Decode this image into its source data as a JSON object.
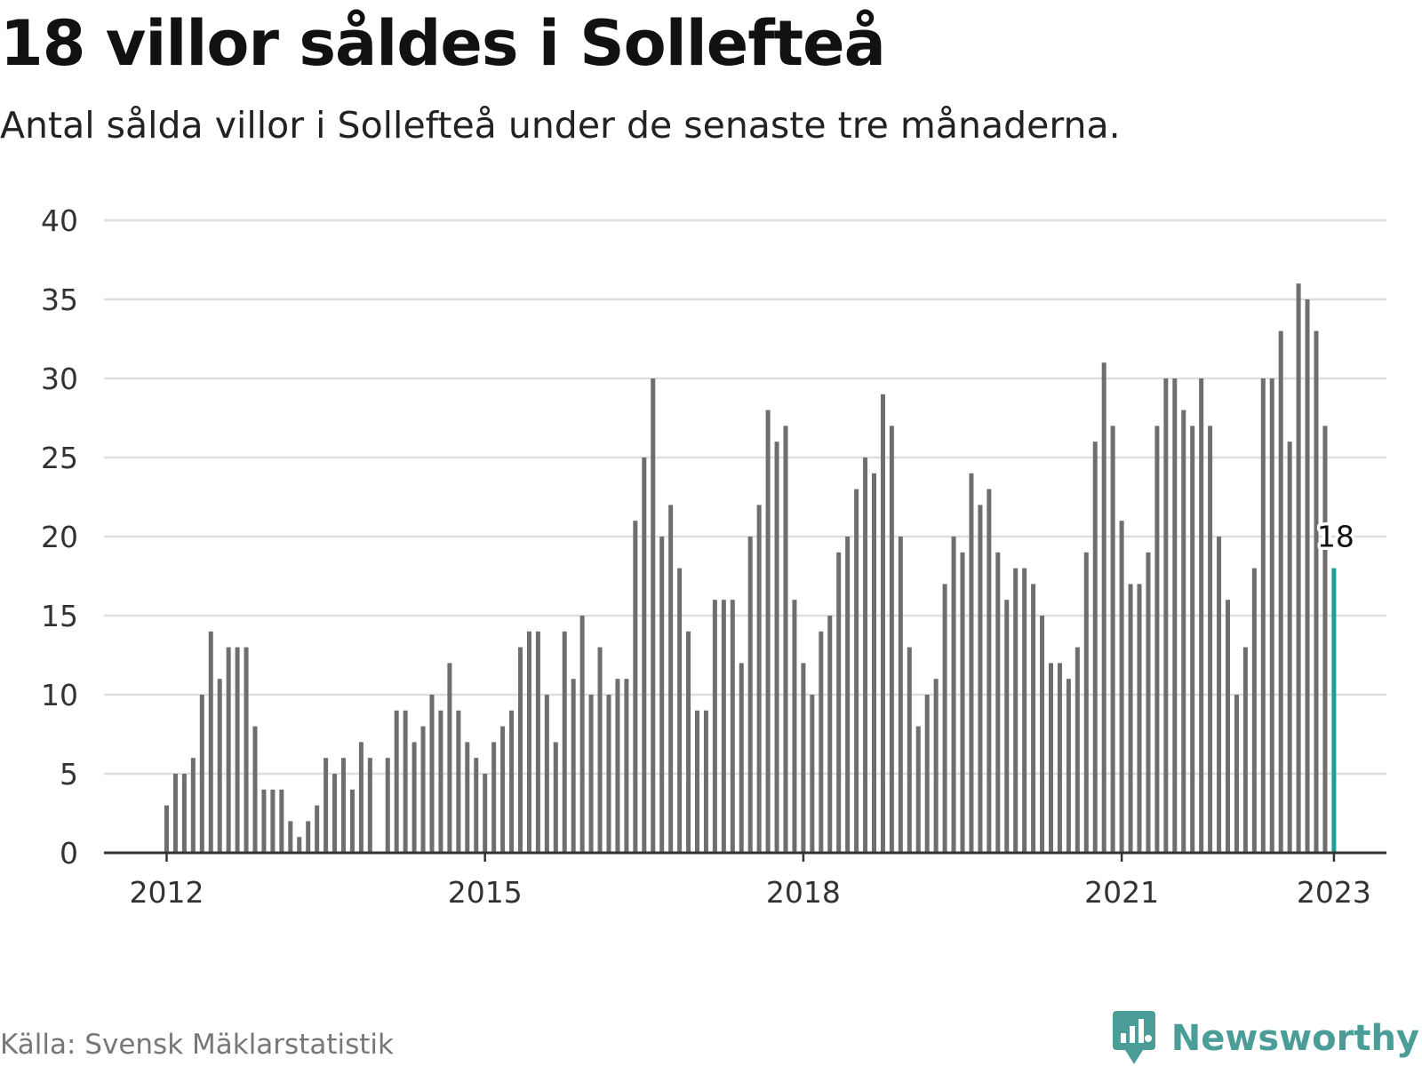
{
  "title": "18 villor såldes i Sollefteå",
  "subtitle": "Antal sålda villor i Sollefteå under de senaste tre månaderna.",
  "source": "Källa: Svensk Mäklarstatistik",
  "brand": {
    "name": "Newsworthy",
    "icon": "newsworthy-logo-icon",
    "color": "#4b9e98"
  },
  "colors": {
    "bar": "#6e6e6e",
    "highlight": "#1e9e97",
    "grid": "#dedede",
    "axis": "#333333"
  },
  "chart_data": {
    "type": "bar",
    "x_start": "2012-01",
    "x_step": "month",
    "values": [
      3,
      5,
      5,
      6,
      10,
      14,
      11,
      13,
      13,
      13,
      8,
      4,
      4,
      4,
      2,
      1,
      2,
      3,
      6,
      5,
      6,
      4,
      7,
      6,
      null,
      6,
      9,
      9,
      7,
      8,
      10,
      9,
      12,
      9,
      7,
      6,
      5,
      7,
      8,
      9,
      13,
      14,
      14,
      10,
      7,
      14,
      11,
      15,
      10,
      13,
      10,
      11,
      11,
      21,
      25,
      30,
      20,
      22,
      18,
      14,
      9,
      9,
      16,
      16,
      16,
      12,
      20,
      22,
      28,
      26,
      27,
      16,
      12,
      10,
      14,
      15,
      19,
      20,
      23,
      25,
      24,
      29,
      27,
      20,
      13,
      8,
      10,
      11,
      17,
      20,
      19,
      24,
      22,
      23,
      19,
      16,
      18,
      18,
      17,
      15,
      12,
      12,
      11,
      13,
      19,
      26,
      31,
      27,
      21,
      17,
      17,
      19,
      27,
      30,
      30,
      28,
      27,
      30,
      27,
      20,
      16,
      10,
      13,
      18,
      30,
      30,
      33,
      26,
      36,
      35,
      33,
      27,
      18
    ],
    "highlight": {
      "x": "2023-01",
      "value": 18,
      "label": "18"
    },
    "y_ticks": [
      "0",
      "5",
      "10",
      "15",
      "20",
      "25",
      "30",
      "35",
      "40"
    ],
    "x_ticks": [
      {
        "label": "2012",
        "x": "2012-01"
      },
      {
        "label": "2015",
        "x": "2015-01"
      },
      {
        "label": "2018",
        "x": "2018-01"
      },
      {
        "label": "2021",
        "x": "2021-01"
      },
      {
        "label": "2023",
        "x": "2023-01"
      }
    ],
    "ylim": [
      0,
      40
    ],
    "grid": true,
    "legend": "none"
  }
}
